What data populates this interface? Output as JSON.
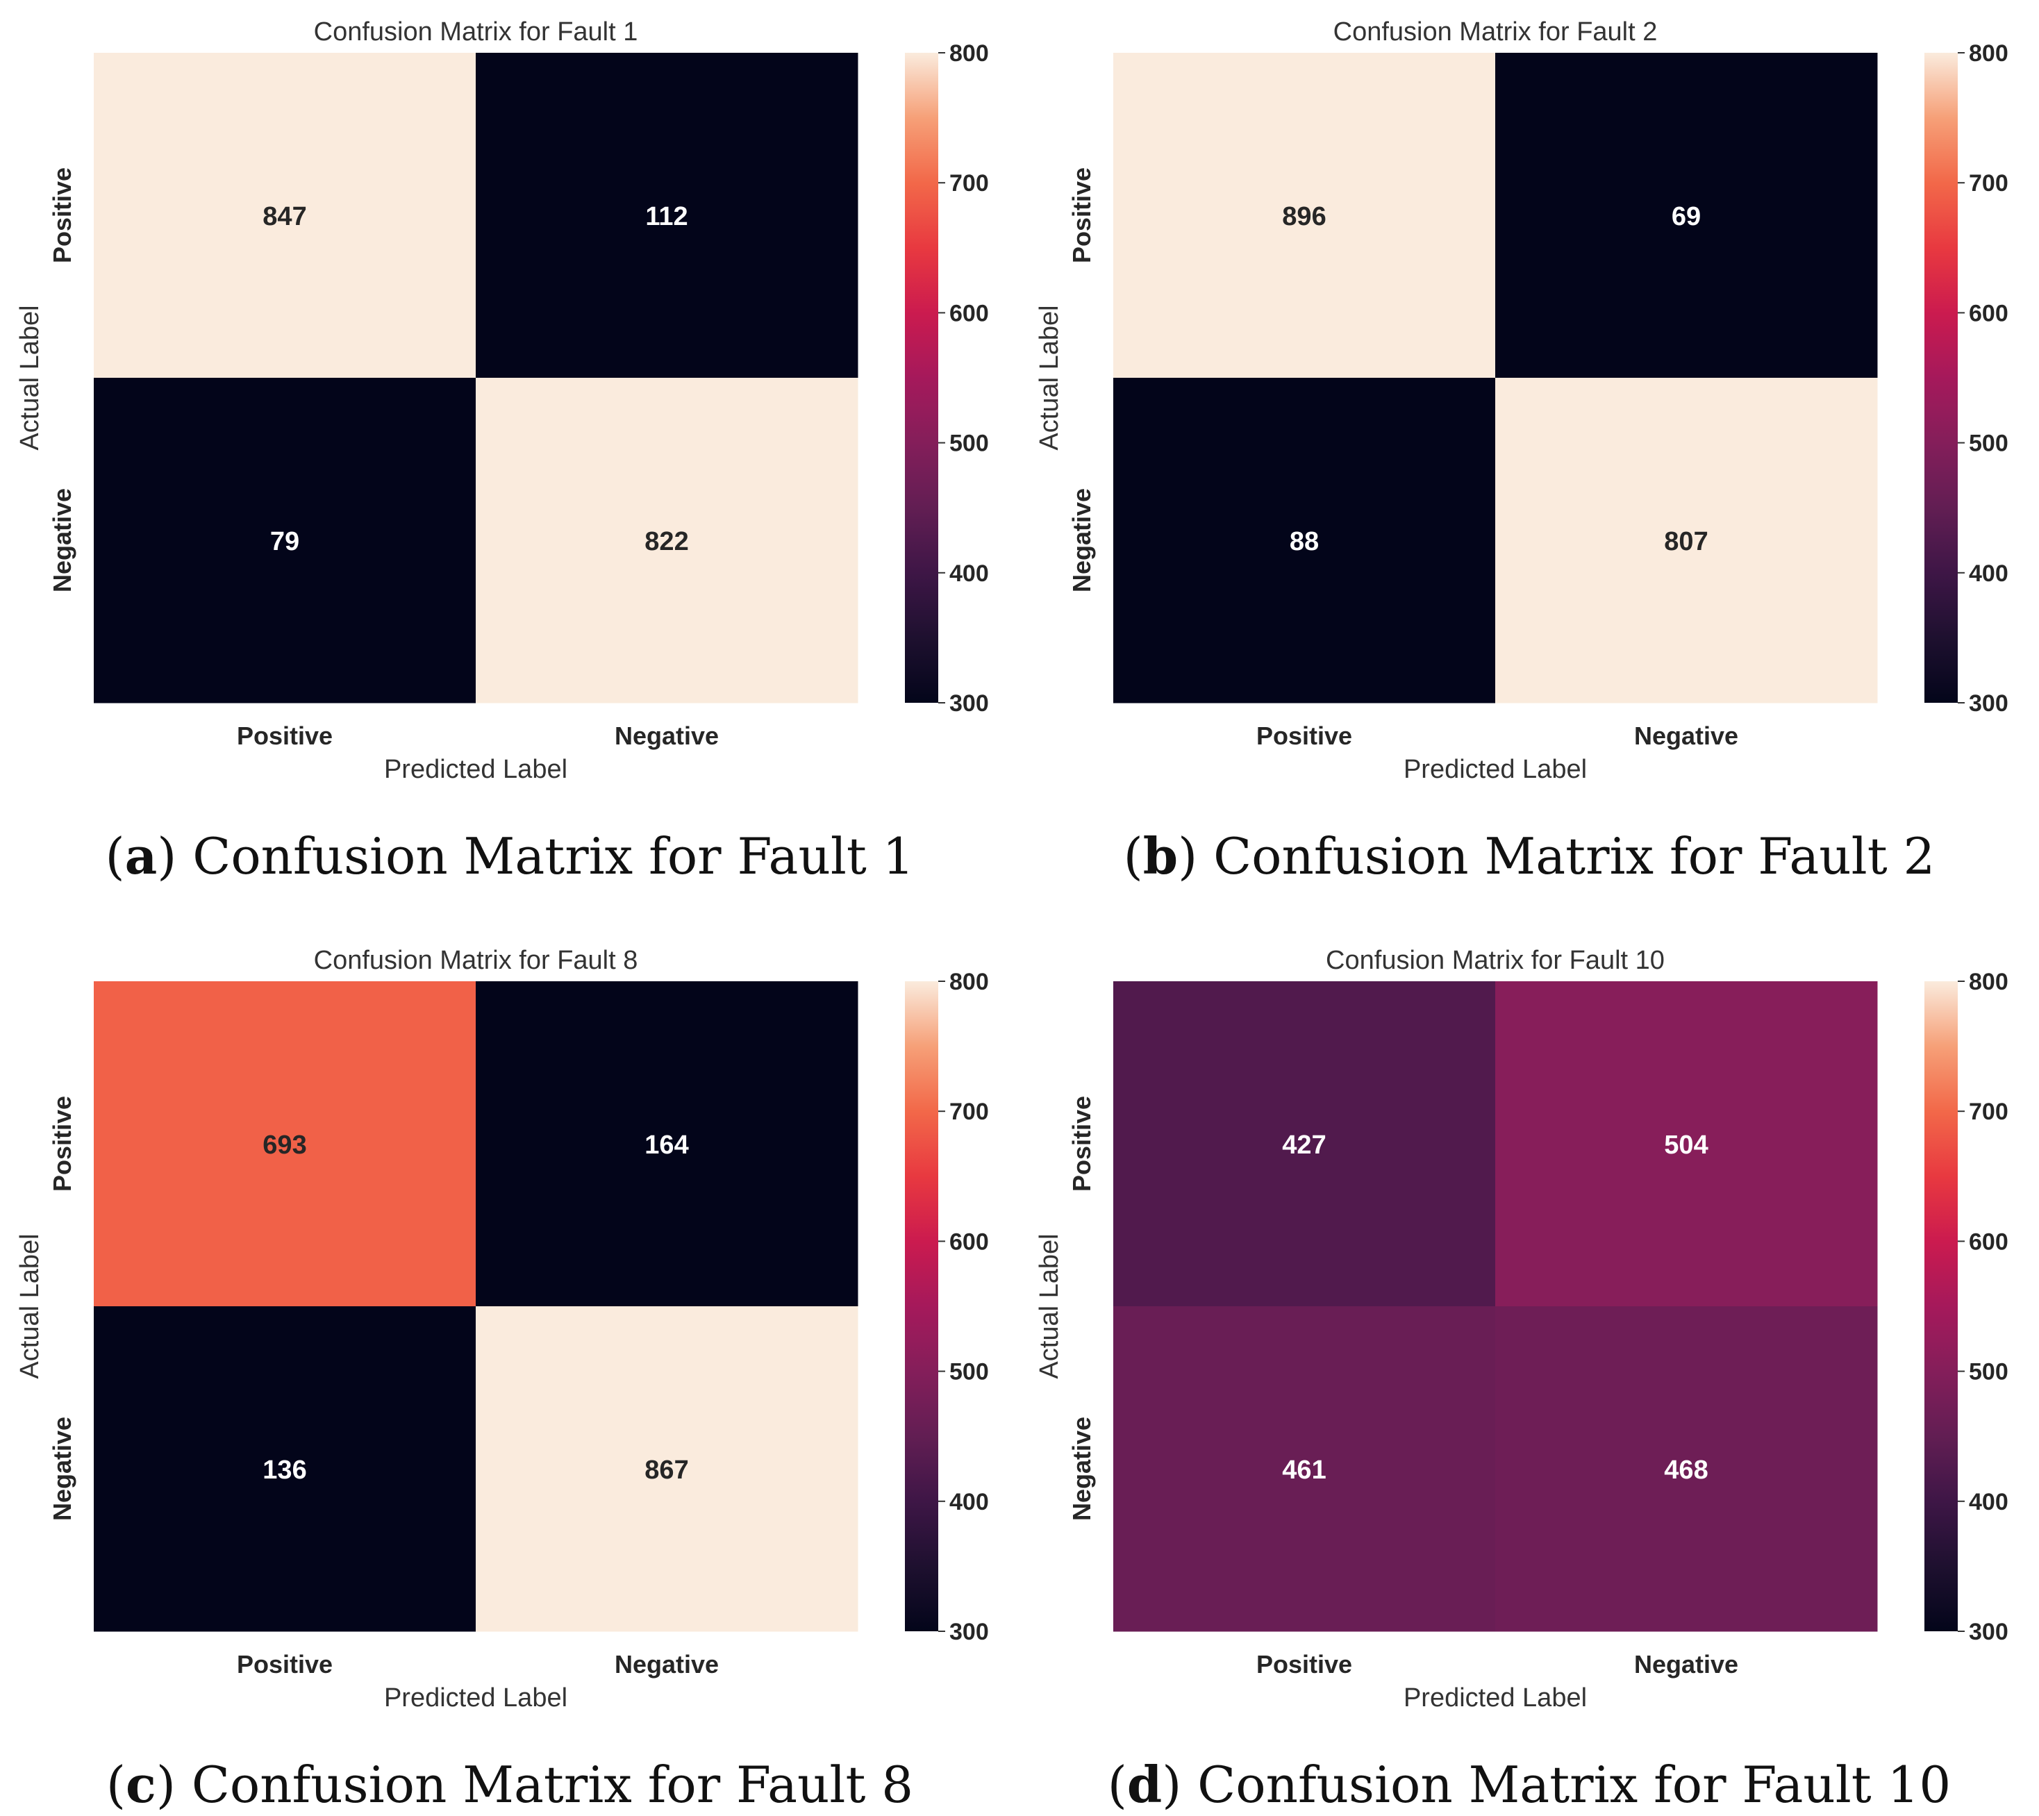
{
  "chart_data": [
    {
      "type": "heatmap",
      "title": "Confusion Matrix for Fault 1",
      "xlabel": "Predicted Label",
      "ylabel": "Actual Label",
      "x_categories": [
        "Positive",
        "Negative"
      ],
      "y_categories": [
        "Positive",
        "Negative"
      ],
      "values": [
        [
          847,
          112
        ],
        [
          79,
          822
        ]
      ],
      "colorbar": {
        "vmin": 300,
        "vmax": 800,
        "ticks": [
          300,
          400,
          500,
          600,
          700,
          800
        ],
        "colormap": "rocket"
      },
      "caption": {
        "letter": "a",
        "text": "Confusion Matrix for Fault 1"
      }
    },
    {
      "type": "heatmap",
      "title": "Confusion Matrix for Fault 2",
      "xlabel": "Predicted Label",
      "ylabel": "Actual Label",
      "x_categories": [
        "Positive",
        "Negative"
      ],
      "y_categories": [
        "Positive",
        "Negative"
      ],
      "values": [
        [
          896,
          69
        ],
        [
          88,
          807
        ]
      ],
      "colorbar": {
        "vmin": 300,
        "vmax": 800,
        "ticks": [
          300,
          400,
          500,
          600,
          700,
          800
        ],
        "colormap": "rocket"
      },
      "caption": {
        "letter": "b",
        "text": "Confusion Matrix for Fault 2"
      }
    },
    {
      "type": "heatmap",
      "title": "Confusion Matrix for Fault 8",
      "xlabel": "Predicted Label",
      "ylabel": "Actual Label",
      "x_categories": [
        "Positive",
        "Negative"
      ],
      "y_categories": [
        "Positive",
        "Negative"
      ],
      "values": [
        [
          693,
          164
        ],
        [
          136,
          867
        ]
      ],
      "colorbar": {
        "vmin": 300,
        "vmax": 800,
        "ticks": [
          300,
          400,
          500,
          600,
          700,
          800
        ],
        "colormap": "rocket"
      },
      "caption": {
        "letter": "c",
        "text": "Confusion Matrix for Fault 8"
      }
    },
    {
      "type": "heatmap",
      "title": "Confusion Matrix for Fault 10",
      "xlabel": "Predicted Label",
      "ylabel": "Actual Label",
      "x_categories": [
        "Positive",
        "Negative"
      ],
      "y_categories": [
        "Positive",
        "Negative"
      ],
      "values": [
        [
          427,
          504
        ],
        [
          461,
          468
        ]
      ],
      "colorbar": {
        "vmin": 300,
        "vmax": 800,
        "ticks": [
          300,
          400,
          500,
          600,
          700,
          800
        ],
        "colormap": "rocket"
      },
      "caption": {
        "letter": "d",
        "text": "Confusion Matrix for Fault 10"
      }
    }
  ]
}
